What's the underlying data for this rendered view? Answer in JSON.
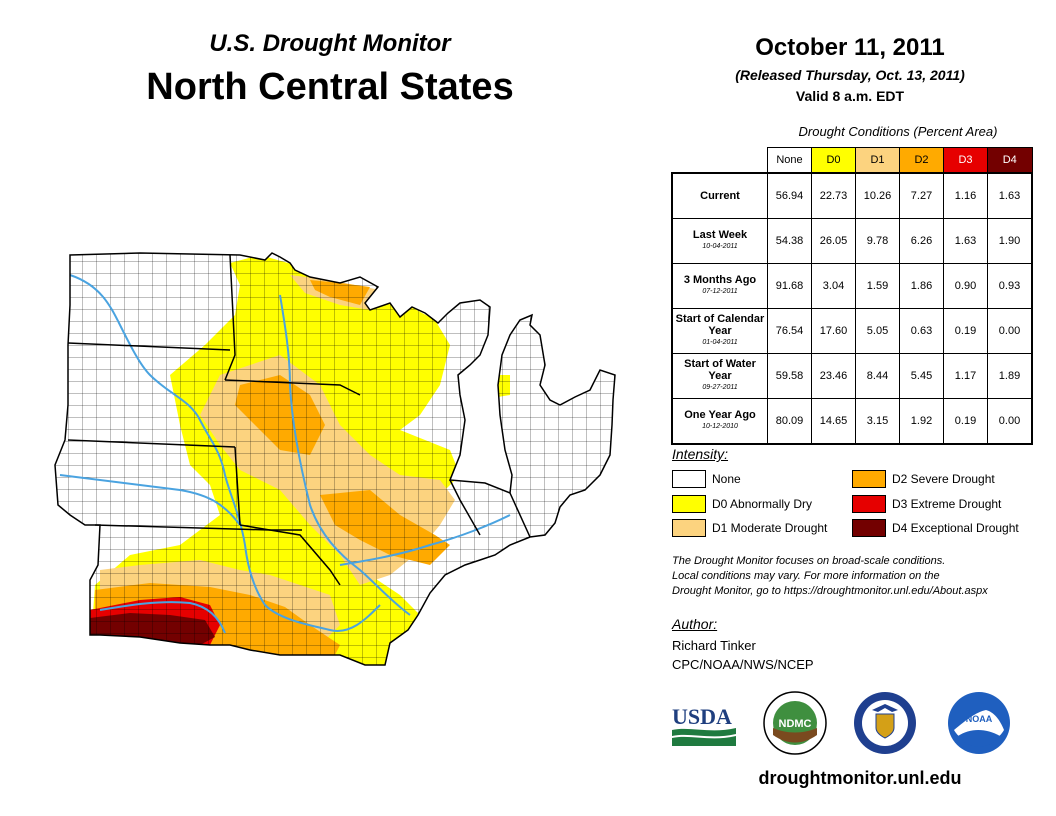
{
  "header": {
    "subtitle": "U.S. Drought Monitor",
    "title": "North Central States",
    "date": "October 11, 2011",
    "released": "(Released Thursday, Oct. 13, 2011)",
    "valid": "Valid 8 a.m. EDT"
  },
  "table": {
    "caption": "Drought Conditions (Percent Area)",
    "columns": [
      "None",
      "D0",
      "D1",
      "D2",
      "D3",
      "D4"
    ],
    "column_colors": [
      "#ffffff",
      "#ffff00",
      "#fcd37f",
      "#ffaa00",
      "#e60000",
      "#730000"
    ],
    "rows": [
      {
        "label": "Current",
        "sub": "",
        "values": [
          "56.94",
          "22.73",
          "10.26",
          "7.27",
          "1.16",
          "1.63"
        ]
      },
      {
        "label": "Last Week",
        "sub": "10-04-2011",
        "values": [
          "54.38",
          "26.05",
          "9.78",
          "6.26",
          "1.63",
          "1.90"
        ]
      },
      {
        "label": "3 Months Ago",
        "sub": "07-12-2011",
        "values": [
          "91.68",
          "3.04",
          "1.59",
          "1.86",
          "0.90",
          "0.93"
        ]
      },
      {
        "label": "Start of Calendar Year",
        "sub": "01-04-2011",
        "values": [
          "76.54",
          "17.60",
          "5.05",
          "0.63",
          "0.19",
          "0.00"
        ]
      },
      {
        "label": "Start of Water Year",
        "sub": "09-27-2011",
        "values": [
          "59.58",
          "23.46",
          "8.44",
          "5.45",
          "1.17",
          "1.89"
        ]
      },
      {
        "label": "One Year Ago",
        "sub": "10-12-2010",
        "values": [
          "80.09",
          "14.65",
          "3.15",
          "1.92",
          "0.19",
          "0.00"
        ]
      }
    ]
  },
  "legend": {
    "title": "Intensity:",
    "items": [
      {
        "label": "None",
        "color": "#ffffff"
      },
      {
        "label": "D0 Abnormally Dry",
        "color": "#ffff00"
      },
      {
        "label": "D1 Moderate Drought",
        "color": "#fcd37f"
      },
      {
        "label": "D2 Severe Drought",
        "color": "#ffaa00"
      },
      {
        "label": "D3 Extreme Drought",
        "color": "#e60000"
      },
      {
        "label": "D4 Exceptional Drought",
        "color": "#730000"
      }
    ]
  },
  "note": {
    "line1": "The Drought Monitor focuses on broad-scale conditions.",
    "line2": "Local conditions may vary. For more information on the",
    "line3": "Drought Monitor, go to https://droughtmonitor.unl.edu/About.aspx"
  },
  "author": {
    "title": "Author:",
    "name": "Richard Tinker",
    "org": "CPC/NOAA/NWS/NCEP"
  },
  "logos": {
    "usda": "USDA",
    "ndmc": "NDMC",
    "noaa": "NOAA"
  },
  "footer": {
    "url": "droughtmonitor.unl.edu"
  },
  "map": {
    "river_color": "#4aa3e0"
  }
}
